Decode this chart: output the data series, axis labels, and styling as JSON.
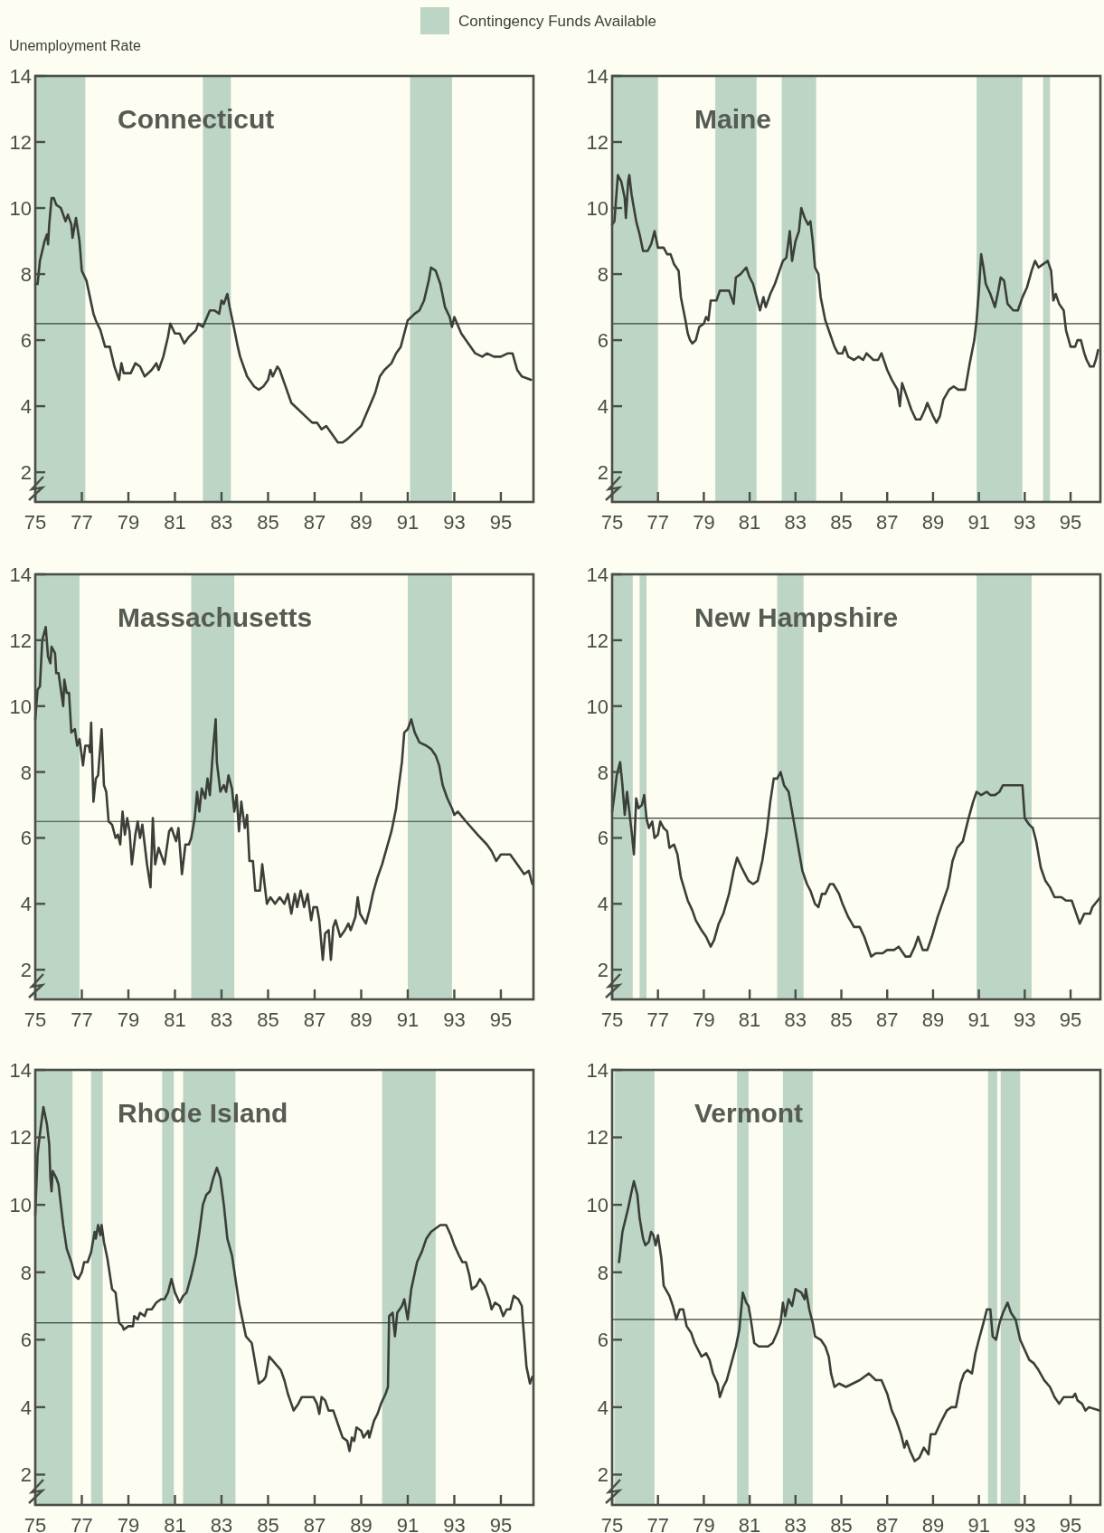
{
  "chart_data": [
    {
      "type": "line",
      "title": "Connecticut",
      "ylabel": "Unemployment Rate",
      "legend": "top",
      "color": "#3b3f39",
      "xlim": [
        75,
        96.4
      ],
      "ylim": [
        1.1,
        14
      ],
      "xticks": [
        75,
        77,
        79,
        81,
        83,
        85,
        87,
        89,
        91,
        93,
        95
      ],
      "yticks": [
        2,
        4,
        6,
        8,
        10,
        12,
        14
      ],
      "x": [
        75.0,
        75.1,
        75.2,
        75.4,
        75.5,
        75.55,
        75.6,
        75.7,
        75.8,
        75.9,
        76.1,
        76.3,
        76.4,
        76.55,
        76.6,
        76.75,
        76.9,
        77.0,
        77.2,
        77.5,
        77.6,
        77.8,
        78.0,
        78.2,
        78.4,
        78.6,
        78.7,
        78.8,
        79.1,
        79.3,
        79.5,
        79.7,
        80.0,
        80.2,
        80.3,
        80.5,
        80.7,
        80.8,
        81.0,
        81.2,
        81.4,
        81.6,
        81.9,
        82.0,
        82.2,
        82.5,
        82.7,
        82.9,
        83.0,
        83.1,
        83.25,
        83.35,
        83.5,
        83.7,
        83.8,
        84.1,
        84.4,
        84.6,
        84.8,
        85.0,
        85.1,
        85.2,
        85.4,
        85.5,
        85.7,
        86.0,
        86.3,
        86.6,
        86.9,
        87.1,
        87.3,
        87.5,
        87.7,
        88.0,
        88.2,
        88.4,
        88.7,
        89.0,
        89.3,
        89.6,
        89.8,
        90.0,
        90.3,
        90.5,
        90.7,
        91.0,
        91.3,
        91.5,
        91.7,
        91.9,
        92.0,
        92.2,
        92.4,
        92.6,
        92.8,
        92.9,
        93.0,
        93.3,
        93.6,
        93.9,
        94.2,
        94.4,
        94.7,
        95.0,
        95.3,
        95.5,
        95.7,
        95.9,
        96.3
      ],
      "values": [
        7.7,
        7.7,
        8.4,
        9.0,
        9.2,
        8.9,
        9.5,
        10.3,
        10.3,
        10.1,
        10.0,
        9.6,
        9.8,
        9.5,
        9.1,
        9.7,
        9.0,
        8.1,
        7.8,
        6.8,
        6.6,
        6.3,
        5.8,
        5.8,
        5.2,
        4.8,
        5.3,
        5.0,
        5.0,
        5.3,
        5.2,
        4.9,
        5.1,
        5.3,
        5.1,
        5.5,
        6.1,
        6.5,
        6.2,
        6.2,
        5.9,
        6.1,
        6.3,
        6.5,
        6.4,
        6.9,
        6.9,
        6.8,
        7.2,
        7.1,
        7.4,
        7.0,
        6.5,
        5.8,
        5.5,
        4.9,
        4.6,
        4.5,
        4.6,
        4.8,
        5.1,
        4.9,
        5.2,
        5.1,
        4.7,
        4.1,
        3.9,
        3.7,
        3.5,
        3.5,
        3.3,
        3.4,
        3.2,
        2.9,
        2.9,
        3.0,
        3.2,
        3.4,
        3.9,
        4.4,
        4.9,
        5.1,
        5.3,
        5.6,
        5.8,
        6.6,
        6.8,
        6.9,
        7.2,
        7.8,
        8.2,
        8.1,
        7.7,
        7.0,
        6.7,
        6.4,
        6.7,
        6.2,
        5.9,
        5.6,
        5.5,
        5.6,
        5.5,
        5.5,
        5.6,
        5.6,
        5.1,
        4.9,
        4.8
      ],
      "ref_lines": [
        {
          "axis": "y",
          "value": 6.5,
          "color": "#3b3f39"
        }
      ],
      "bands": [
        {
          "axis": "x",
          "from": 75,
          "to": 77.15,
          "label": "Contingency Funds Available",
          "color": "#bcd5c5"
        },
        {
          "axis": "x",
          "from": 82.2,
          "to": 83.4,
          "color": "#bcd5c5"
        },
        {
          "axis": "x",
          "from": 91.1,
          "to": 92.9,
          "color": "#bcd5c5"
        }
      ]
    },
    {
      "type": "line",
      "title": "Maine",
      "color": "#3b3f39",
      "xlim": [
        75,
        96.3
      ],
      "ylim": [
        1.1,
        14
      ],
      "xticks": [
        75,
        77,
        79,
        81,
        83,
        85,
        87,
        89,
        91,
        93,
        95
      ],
      "yticks": [
        2,
        4,
        6,
        8,
        10,
        12,
        14
      ],
      "x": [
        75.0,
        75.1,
        75.25,
        75.4,
        75.55,
        75.6,
        75.7,
        75.75,
        75.85,
        75.95,
        76.05,
        76.2,
        76.35,
        76.55,
        76.7,
        76.85,
        77.0,
        77.25,
        77.4,
        77.55,
        77.7,
        77.9,
        78.0,
        78.2,
        78.3,
        78.4,
        78.5,
        78.65,
        78.8,
        79.0,
        79.1,
        79.2,
        79.3,
        79.55,
        79.7,
        79.9,
        80.1,
        80.3,
        80.4,
        80.6,
        80.85,
        81.0,
        81.15,
        81.3,
        81.45,
        81.6,
        81.7,
        81.9,
        82.1,
        82.3,
        82.45,
        82.6,
        82.75,
        82.85,
        83.0,
        83.15,
        83.25,
        83.4,
        83.55,
        83.65,
        83.75,
        83.85,
        84.0,
        84.1,
        84.3,
        84.5,
        84.7,
        84.85,
        85.05,
        85.15,
        85.3,
        85.55,
        85.75,
        85.95,
        86.1,
        86.4,
        86.6,
        86.75,
        87.0,
        87.2,
        87.45,
        87.55,
        87.65,
        87.85,
        88.05,
        88.25,
        88.45,
        88.65,
        88.75,
        89.0,
        89.15,
        89.3,
        89.45,
        89.7,
        89.9,
        90.1,
        90.4,
        90.6,
        90.8,
        90.9,
        91.0,
        91.1,
        91.2,
        91.3,
        91.5,
        91.7,
        91.85,
        91.95,
        92.1,
        92.25,
        92.5,
        92.7,
        92.9,
        93.1,
        93.3,
        93.45,
        93.6,
        93.8,
        94.0,
        94.15,
        94.25,
        94.35,
        94.5,
        94.7,
        94.8,
        95.0,
        95.2,
        95.3,
        95.45,
        95.6,
        95.7,
        95.85,
        96.0,
        96.1,
        96.2
      ],
      "values": [
        9.5,
        9.6,
        11.0,
        10.8,
        10.3,
        9.7,
        10.8,
        11.0,
        10.4,
        10.0,
        9.6,
        9.2,
        8.7,
        8.7,
        8.9,
        9.3,
        8.8,
        8.8,
        8.6,
        8.6,
        8.3,
        8.1,
        7.3,
        6.6,
        6.2,
        6.0,
        5.9,
        6.0,
        6.4,
        6.5,
        6.7,
        6.6,
        7.2,
        7.2,
        7.5,
        7.5,
        7.5,
        7.1,
        7.9,
        8.0,
        8.2,
        7.9,
        7.7,
        7.3,
        6.9,
        7.3,
        7.0,
        7.4,
        7.7,
        8.1,
        8.4,
        8.5,
        9.3,
        8.4,
        9.0,
        9.3,
        10.0,
        9.7,
        9.5,
        9.6,
        9.0,
        8.2,
        8.0,
        7.3,
        6.6,
        6.2,
        5.8,
        5.6,
        5.6,
        5.8,
        5.5,
        5.4,
        5.5,
        5.4,
        5.6,
        5.4,
        5.4,
        5.6,
        5.1,
        4.8,
        4.5,
        4.0,
        4.7,
        4.3,
        3.9,
        3.6,
        3.6,
        3.9,
        4.1,
        3.7,
        3.5,
        3.7,
        4.2,
        4.5,
        4.6,
        4.5,
        4.5,
        5.3,
        6.0,
        6.6,
        7.5,
        8.6,
        8.2,
        7.7,
        7.4,
        7.0,
        7.5,
        7.9,
        7.8,
        7.1,
        6.9,
        6.9,
        7.3,
        7.6,
        8.1,
        8.4,
        8.2,
        8.3,
        8.4,
        8.1,
        7.2,
        7.4,
        7.1,
        6.9,
        6.3,
        5.8,
        5.8,
        6.0,
        6.0,
        5.6,
        5.4,
        5.2,
        5.2,
        5.4,
        5.7
      ],
      "ref_lines": [
        {
          "axis": "y",
          "value": 6.5,
          "color": "#3b3f39"
        }
      ],
      "bands": [
        {
          "axis": "x",
          "from": 75,
          "to": 77.0,
          "color": "#bcd5c5"
        },
        {
          "axis": "x",
          "from": 79.5,
          "to": 81.3,
          "color": "#bcd5c5"
        },
        {
          "axis": "x",
          "from": 82.4,
          "to": 83.9,
          "color": "#bcd5c5"
        },
        {
          "axis": "x",
          "from": 90.9,
          "to": 92.9,
          "color": "#bcd5c5"
        },
        {
          "axis": "x",
          "from": 93.8,
          "to": 94.1,
          "color": "#bcd5c5"
        }
      ]
    },
    {
      "type": "line",
      "title": "Massachusetts",
      "color": "#3b3f39",
      "xlim": [
        75,
        96.4
      ],
      "ylim": [
        1.1,
        14
      ],
      "xticks": [
        75,
        77,
        79,
        81,
        83,
        85,
        87,
        89,
        91,
        93,
        95
      ],
      "yticks": [
        2,
        4,
        6,
        8,
        10,
        12,
        14
      ],
      "x": [
        75.0,
        75.1,
        75.2,
        75.3,
        75.45,
        75.55,
        75.65,
        75.7,
        75.85,
        75.9,
        76.0,
        76.1,
        76.2,
        76.25,
        76.35,
        76.45,
        76.55,
        76.7,
        76.8,
        76.9,
        77.05,
        77.15,
        77.3,
        77.35,
        77.4,
        77.5,
        77.6,
        77.7,
        77.85,
        77.95,
        78.05,
        78.15,
        78.3,
        78.45,
        78.55,
        78.65,
        78.75,
        78.85,
        78.95,
        79.05,
        79.15,
        79.3,
        79.4,
        79.5,
        79.6,
        79.7,
        79.8,
        79.95,
        80.05,
        80.15,
        80.3,
        80.55,
        80.75,
        80.85,
        81.05,
        81.15,
        81.3,
        81.45,
        81.6,
        81.7,
        81.85,
        81.95,
        82.05,
        82.15,
        82.3,
        82.4,
        82.5,
        82.65,
        82.75,
        82.8,
        82.95,
        83.1,
        83.2,
        83.3,
        83.45,
        83.55,
        83.65,
        83.75,
        83.85,
        84.0,
        84.1,
        84.2,
        84.35,
        84.45,
        84.65,
        84.75,
        84.95,
        85.1,
        85.3,
        85.5,
        85.7,
        85.85,
        86.0,
        86.15,
        86.25,
        86.4,
        86.55,
        86.7,
        86.85,
        86.95,
        87.1,
        87.2,
        87.35,
        87.45,
        87.6,
        87.7,
        87.8,
        87.9,
        88.1,
        88.3,
        88.45,
        88.55,
        88.75,
        88.85,
        88.95,
        89.2,
        89.35,
        89.5,
        89.7,
        89.9,
        90.1,
        90.3,
        90.5,
        90.6,
        90.75,
        90.85,
        91.0,
        91.15,
        91.3,
        91.5,
        91.8,
        92.0,
        92.2,
        92.35,
        92.5,
        92.7,
        92.9,
        93.0,
        93.15,
        93.5,
        94.0,
        94.4,
        94.6,
        94.8,
        95.0,
        95.4,
        95.7,
        96.0,
        96.2,
        96.35
      ],
      "values": [
        9.6,
        10.5,
        10.6,
        12.0,
        12.4,
        11.5,
        11.3,
        11.8,
        11.6,
        11.0,
        11.0,
        10.5,
        10.0,
        10.8,
        10.4,
        10.4,
        9.2,
        9.3,
        8.8,
        9.0,
        8.2,
        8.8,
        8.8,
        8.6,
        9.5,
        7.1,
        7.8,
        7.9,
        9.3,
        7.6,
        7.4,
        6.5,
        6.4,
        6.0,
        6.1,
        5.8,
        6.8,
        6.1,
        6.6,
        6.2,
        5.2,
        6.1,
        6.5,
        6.0,
        6.4,
        5.8,
        5.2,
        4.5,
        6.6,
        5.2,
        5.7,
        5.2,
        6.2,
        6.3,
        5.9,
        6.3,
        4.9,
        5.8,
        5.8,
        6.0,
        6.6,
        7.4,
        6.8,
        7.5,
        7.2,
        7.8,
        7.3,
        8.8,
        9.6,
        8.3,
        7.4,
        7.6,
        7.4,
        7.9,
        7.5,
        6.8,
        7.3,
        6.2,
        7.1,
        6.3,
        6.7,
        5.3,
        5.3,
        4.4,
        4.4,
        5.2,
        4.0,
        4.2,
        4.0,
        4.2,
        4.0,
        4.3,
        3.7,
        4.3,
        3.9,
        4.4,
        3.9,
        4.3,
        3.5,
        3.9,
        3.9,
        3.5,
        2.3,
        3.1,
        3.2,
        2.3,
        3.3,
        3.5,
        3.0,
        3.2,
        3.4,
        3.2,
        3.6,
        4.2,
        3.7,
        3.4,
        3.8,
        4.3,
        4.8,
        5.2,
        5.7,
        6.2,
        6.9,
        7.5,
        8.3,
        9.2,
        9.3,
        9.6,
        9.2,
        8.9,
        8.8,
        8.7,
        8.5,
        8.2,
        7.6,
        7.2,
        6.9,
        6.7,
        6.8,
        6.5,
        6.1,
        5.8,
        5.6,
        5.3,
        5.5,
        5.5,
        5.2,
        4.9,
        5.0,
        4.6
      ],
      "ref_lines": [
        {
          "axis": "y",
          "value": 6.5,
          "color": "#3b3f39"
        }
      ],
      "bands": [
        {
          "axis": "x",
          "from": 75,
          "to": 76.9,
          "color": "#bcd5c5"
        },
        {
          "axis": "x",
          "from": 81.7,
          "to": 83.55,
          "color": "#bcd5c5"
        },
        {
          "axis": "x",
          "from": 91.0,
          "to": 92.9,
          "color": "#bcd5c5"
        }
      ]
    },
    {
      "type": "line",
      "title": "New Hampshire",
      "color": "#3b3f39",
      "xlim": [
        75,
        96.3
      ],
      "ylim": [
        1.1,
        14
      ],
      "xticks": [
        75,
        77,
        79,
        81,
        83,
        85,
        87,
        89,
        91,
        93,
        95
      ],
      "yticks": [
        2,
        4,
        6,
        8,
        10,
        12,
        14
      ],
      "x": [
        75.0,
        75.1,
        75.2,
        75.35,
        75.45,
        75.55,
        75.65,
        75.75,
        75.85,
        75.95,
        76.05,
        76.15,
        76.3,
        76.4,
        76.5,
        76.6,
        76.75,
        76.85,
        77.0,
        77.1,
        77.25,
        77.4,
        77.5,
        77.7,
        77.85,
        78.0,
        78.3,
        78.5,
        78.65,
        78.9,
        79.1,
        79.3,
        79.45,
        79.65,
        79.85,
        80.1,
        80.3,
        80.45,
        80.65,
        80.8,
        80.95,
        81.15,
        81.35,
        81.55,
        81.75,
        81.9,
        82.05,
        82.2,
        82.35,
        82.5,
        82.7,
        82.9,
        83.1,
        83.3,
        83.5,
        83.65,
        83.85,
        84.0,
        84.15,
        84.3,
        84.5,
        84.65,
        84.9,
        85.05,
        85.3,
        85.55,
        85.8,
        86.0,
        86.15,
        86.3,
        86.5,
        86.8,
        87.0,
        87.3,
        87.5,
        87.8,
        88.0,
        88.2,
        88.35,
        88.55,
        88.75,
        88.95,
        89.2,
        89.4,
        89.65,
        89.85,
        90.05,
        90.3,
        90.55,
        90.75,
        90.9,
        91.1,
        91.35,
        91.5,
        91.7,
        91.9,
        92.05,
        92.2,
        92.5,
        92.8,
        92.9,
        93.0,
        93.2,
        93.35,
        93.5,
        93.7,
        93.9,
        94.1,
        94.3,
        94.6,
        94.8,
        95.05,
        95.2,
        95.4,
        95.6,
        95.85,
        95.95,
        96.3
      ],
      "values": [
        6.8,
        7.3,
        7.9,
        8.3,
        7.6,
        6.7,
        7.4,
        6.8,
        6.2,
        5.5,
        7.2,
        6.9,
        7.0,
        7.3,
        6.6,
        6.3,
        6.5,
        6.0,
        6.1,
        6.5,
        6.3,
        6.2,
        5.7,
        5.8,
        5.5,
        4.8,
        4.1,
        3.8,
        3.5,
        3.2,
        3.0,
        2.7,
        2.9,
        3.4,
        3.7,
        4.3,
        5.0,
        5.4,
        5.1,
        4.9,
        4.7,
        4.6,
        4.7,
        5.3,
        6.2,
        7.1,
        7.8,
        7.8,
        8.0,
        7.6,
        7.4,
        6.6,
        5.8,
        5.0,
        4.6,
        4.4,
        4.0,
        3.9,
        4.3,
        4.3,
        4.6,
        4.6,
        4.3,
        4.0,
        3.6,
        3.3,
        3.3,
        3.0,
        2.7,
        2.4,
        2.5,
        2.5,
        2.6,
        2.6,
        2.7,
        2.4,
        2.4,
        2.7,
        3.0,
        2.6,
        2.6,
        3.0,
        3.6,
        4.0,
        4.5,
        5.3,
        5.7,
        5.9,
        6.6,
        7.1,
        7.4,
        7.3,
        7.4,
        7.3,
        7.3,
        7.4,
        7.6,
        7.6,
        7.6,
        7.6,
        7.6,
        6.6,
        6.4,
        6.3,
        5.9,
        5.1,
        4.7,
        4.5,
        4.2,
        4.2,
        4.1,
        4.1,
        3.8,
        3.4,
        3.7,
        3.7,
        3.9,
        4.2
      ],
      "ref_lines": [
        {
          "axis": "y",
          "value": 6.6,
          "color": "#3b3f39"
        }
      ],
      "bands": [
        {
          "axis": "x",
          "from": 75,
          "to": 75.9,
          "color": "#bcd5c5"
        },
        {
          "axis": "x",
          "from": 76.2,
          "to": 76.5,
          "color": "#bcd5c5"
        },
        {
          "axis": "x",
          "from": 82.2,
          "to": 83.35,
          "color": "#bcd5c5"
        },
        {
          "axis": "x",
          "from": 90.9,
          "to": 93.3,
          "color": "#bcd5c5"
        }
      ]
    },
    {
      "type": "line",
      "title": "Rhode Island",
      "color": "#3b3f39",
      "xlim": [
        75,
        96.4
      ],
      "ylim": [
        1.1,
        14
      ],
      "xticks": [
        75,
        77,
        79,
        81,
        83,
        85,
        87,
        89,
        91,
        93,
        95
      ],
      "yticks": [
        2,
        4,
        6,
        8,
        10,
        12,
        14
      ],
      "x": [
        75.0,
        75.1,
        75.2,
        75.35,
        75.5,
        75.6,
        75.65,
        75.7,
        75.75,
        75.9,
        76.0,
        76.2,
        76.35,
        76.55,
        76.7,
        76.85,
        77.0,
        77.1,
        77.25,
        77.4,
        77.55,
        77.6,
        77.7,
        77.8,
        77.85,
        77.95,
        78.1,
        78.3,
        78.45,
        78.6,
        78.75,
        78.8,
        79.0,
        79.2,
        79.25,
        79.4,
        79.5,
        79.7,
        79.8,
        80.0,
        80.2,
        80.4,
        80.55,
        80.7,
        80.85,
        81.0,
        81.2,
        81.35,
        81.5,
        81.7,
        81.9,
        82.05,
        82.2,
        82.35,
        82.5,
        82.65,
        82.8,
        82.95,
        83.1,
        83.25,
        83.45,
        83.6,
        83.75,
        83.9,
        84.05,
        84.3,
        84.45,
        84.6,
        84.8,
        84.9,
        85.05,
        85.3,
        85.55,
        85.7,
        85.85,
        86.1,
        86.3,
        86.45,
        86.75,
        86.95,
        87.1,
        87.2,
        87.3,
        87.45,
        87.6,
        87.8,
        88.0,
        88.2,
        88.4,
        88.5,
        88.6,
        88.7,
        88.8,
        89.0,
        89.1,
        89.3,
        89.35,
        89.55,
        89.7,
        89.85,
        90.05,
        90.15,
        90.2,
        90.35,
        90.45,
        90.55,
        90.75,
        90.85,
        91.0,
        91.15,
        91.4,
        91.6,
        91.8,
        92.0,
        92.2,
        92.4,
        92.65,
        92.85,
        93.0,
        93.2,
        93.35,
        93.5,
        93.65,
        93.75,
        93.95,
        94.1,
        94.3,
        94.5,
        94.6,
        94.75,
        94.95,
        95.1,
        95.25,
        95.4,
        95.55,
        95.75,
        95.9,
        95.95,
        96.1,
        96.25,
        96.35
      ],
      "values": [
        9.7,
        11.5,
        12.1,
        12.9,
        12.4,
        11.8,
        10.8,
        10.4,
        11.0,
        10.8,
        10.6,
        9.4,
        8.7,
        8.3,
        7.9,
        7.8,
        8.0,
        8.3,
        8.3,
        8.6,
        9.2,
        9.0,
        9.4,
        9.1,
        9.4,
        8.9,
        8.4,
        7.5,
        7.4,
        6.5,
        6.4,
        6.3,
        6.4,
        6.4,
        6.7,
        6.6,
        6.8,
        6.7,
        6.9,
        6.9,
        7.1,
        7.2,
        7.2,
        7.4,
        7.8,
        7.4,
        7.1,
        7.3,
        7.4,
        7.9,
        8.5,
        9.2,
        10.0,
        10.3,
        10.4,
        10.8,
        11.1,
        10.8,
        10.0,
        9.0,
        8.5,
        7.8,
        7.1,
        6.6,
        6.1,
        5.9,
        5.3,
        4.7,
        4.8,
        4.9,
        5.5,
        5.3,
        5.1,
        4.8,
        4.4,
        3.9,
        4.1,
        4.3,
        4.3,
        4.3,
        4.1,
        3.8,
        4.3,
        4.2,
        3.9,
        3.9,
        3.5,
        3.1,
        3.0,
        2.7,
        3.1,
        3.0,
        3.4,
        3.3,
        3.1,
        3.3,
        3.1,
        3.6,
        3.8,
        4.1,
        4.4,
        4.6,
        6.7,
        6.8,
        6.1,
        6.8,
        7.0,
        7.2,
        6.6,
        7.5,
        8.3,
        8.6,
        9.0,
        9.2,
        9.3,
        9.4,
        9.4,
        9.1,
        8.8,
        8.5,
        8.3,
        8.3,
        7.9,
        7.5,
        7.6,
        7.8,
        7.6,
        7.2,
        6.9,
        7.1,
        7.0,
        6.7,
        6.9,
        6.9,
        7.3,
        7.2,
        7.0,
        6.5,
        5.2,
        4.7,
        4.9
      ],
      "ref_lines": [
        {
          "axis": "y",
          "value": 6.5,
          "color": "#3b3f39"
        }
      ],
      "bands": [
        {
          "axis": "x",
          "from": 75,
          "to": 76.6,
          "color": "#bcd5c5"
        },
        {
          "axis": "x",
          "from": 77.4,
          "to": 77.9,
          "color": "#bcd5c5"
        },
        {
          "axis": "x",
          "from": 80.45,
          "to": 80.95,
          "color": "#bcd5c5"
        },
        {
          "axis": "x",
          "from": 81.35,
          "to": 83.6,
          "color": "#bcd5c5"
        },
        {
          "axis": "x",
          "from": 89.9,
          "to": 92.2,
          "color": "#bcd5c5"
        }
      ]
    },
    {
      "type": "line",
      "title": "Vermont",
      "color": "#3b3f39",
      "xlim": [
        75,
        96.3
      ],
      "ylim": [
        1.1,
        14
      ],
      "xticks": [
        75,
        77,
        79,
        81,
        83,
        85,
        87,
        89,
        91,
        93,
        95
      ],
      "yticks": [
        2,
        4,
        6,
        8,
        10,
        12,
        14
      ],
      "x": [
        75.3,
        75.45,
        75.7,
        75.85,
        75.95,
        76.1,
        76.2,
        76.35,
        76.45,
        76.6,
        76.7,
        76.8,
        76.9,
        77.0,
        77.15,
        77.25,
        77.5,
        77.65,
        77.8,
        77.95,
        78.1,
        78.25,
        78.45,
        78.6,
        78.75,
        78.9,
        79.1,
        79.25,
        79.4,
        79.6,
        79.7,
        79.85,
        80.0,
        80.2,
        80.4,
        80.55,
        80.7,
        80.85,
        80.95,
        81.05,
        81.2,
        81.4,
        81.6,
        81.8,
        82.0,
        82.2,
        82.35,
        82.45,
        82.55,
        82.7,
        82.85,
        83.0,
        83.25,
        83.4,
        83.45,
        83.6,
        83.75,
        83.85,
        84.1,
        84.3,
        84.45,
        84.55,
        84.7,
        84.9,
        85.2,
        85.5,
        85.8,
        86.0,
        86.2,
        86.5,
        86.75,
        87.0,
        87.2,
        87.4,
        87.6,
        87.75,
        87.85,
        88.0,
        88.2,
        88.4,
        88.6,
        88.8,
        88.9,
        89.1,
        89.3,
        89.6,
        89.8,
        90.0,
        90.2,
        90.35,
        90.5,
        90.7,
        90.85,
        91.0,
        91.2,
        91.35,
        91.5,
        91.6,
        91.75,
        91.9,
        92.05,
        92.25,
        92.4,
        92.6,
        92.8,
        93.0,
        93.2,
        93.4,
        93.6,
        93.85,
        94.1,
        94.3,
        94.5,
        94.7,
        94.9,
        95.1,
        95.2,
        95.3,
        95.5,
        95.65,
        95.8,
        96.25
      ],
      "values": [
        8.3,
        9.2,
        9.9,
        10.4,
        10.7,
        10.3,
        9.6,
        9.0,
        8.8,
        8.9,
        9.2,
        9.1,
        8.8,
        9.1,
        8.4,
        7.6,
        7.3,
        7.0,
        6.6,
        6.9,
        6.9,
        6.4,
        6.2,
        5.9,
        5.7,
        5.5,
        5.6,
        5.4,
        5.0,
        4.7,
        4.3,
        4.6,
        4.8,
        5.3,
        5.8,
        6.3,
        7.4,
        7.1,
        7.0,
        6.6,
        5.9,
        5.8,
        5.8,
        5.8,
        5.9,
        6.2,
        6.5,
        7.1,
        6.7,
        7.2,
        7.0,
        7.5,
        7.4,
        7.2,
        7.5,
        6.9,
        6.5,
        6.1,
        6.0,
        5.8,
        5.5,
        5.0,
        4.6,
        4.7,
        4.6,
        4.7,
        4.8,
        4.9,
        5.0,
        4.8,
        4.8,
        4.4,
        3.9,
        3.6,
        3.2,
        2.8,
        3.0,
        2.7,
        2.4,
        2.5,
        2.8,
        2.6,
        3.2,
        3.2,
        3.5,
        3.9,
        4.0,
        4.0,
        4.7,
        5.0,
        5.1,
        5.0,
        5.6,
        6.0,
        6.5,
        6.9,
        6.9,
        6.1,
        6.0,
        6.5,
        6.8,
        7.1,
        6.8,
        6.6,
        6.0,
        5.7,
        5.4,
        5.3,
        5.1,
        4.8,
        4.6,
        4.3,
        4.1,
        4.3,
        4.3,
        4.3,
        4.4,
        4.2,
        4.1,
        3.9,
        4.0,
        3.9
      ],
      "ref_lines": [
        {
          "axis": "y",
          "value": 6.6,
          "color": "#3b3f39"
        }
      ],
      "bands": [
        {
          "axis": "x",
          "from": 75.1,
          "to": 76.85,
          "color": "#bcd5c5"
        },
        {
          "axis": "x",
          "from": 80.45,
          "to": 80.95,
          "color": "#bcd5c5"
        },
        {
          "axis": "x",
          "from": 82.45,
          "to": 83.75,
          "color": "#bcd5c5"
        },
        {
          "axis": "x",
          "from": 91.4,
          "to": 91.8,
          "color": "#bcd5c5"
        },
        {
          "axis": "x",
          "from": 91.95,
          "to": 92.8,
          "color": "#bcd5c5"
        }
      ]
    }
  ]
}
